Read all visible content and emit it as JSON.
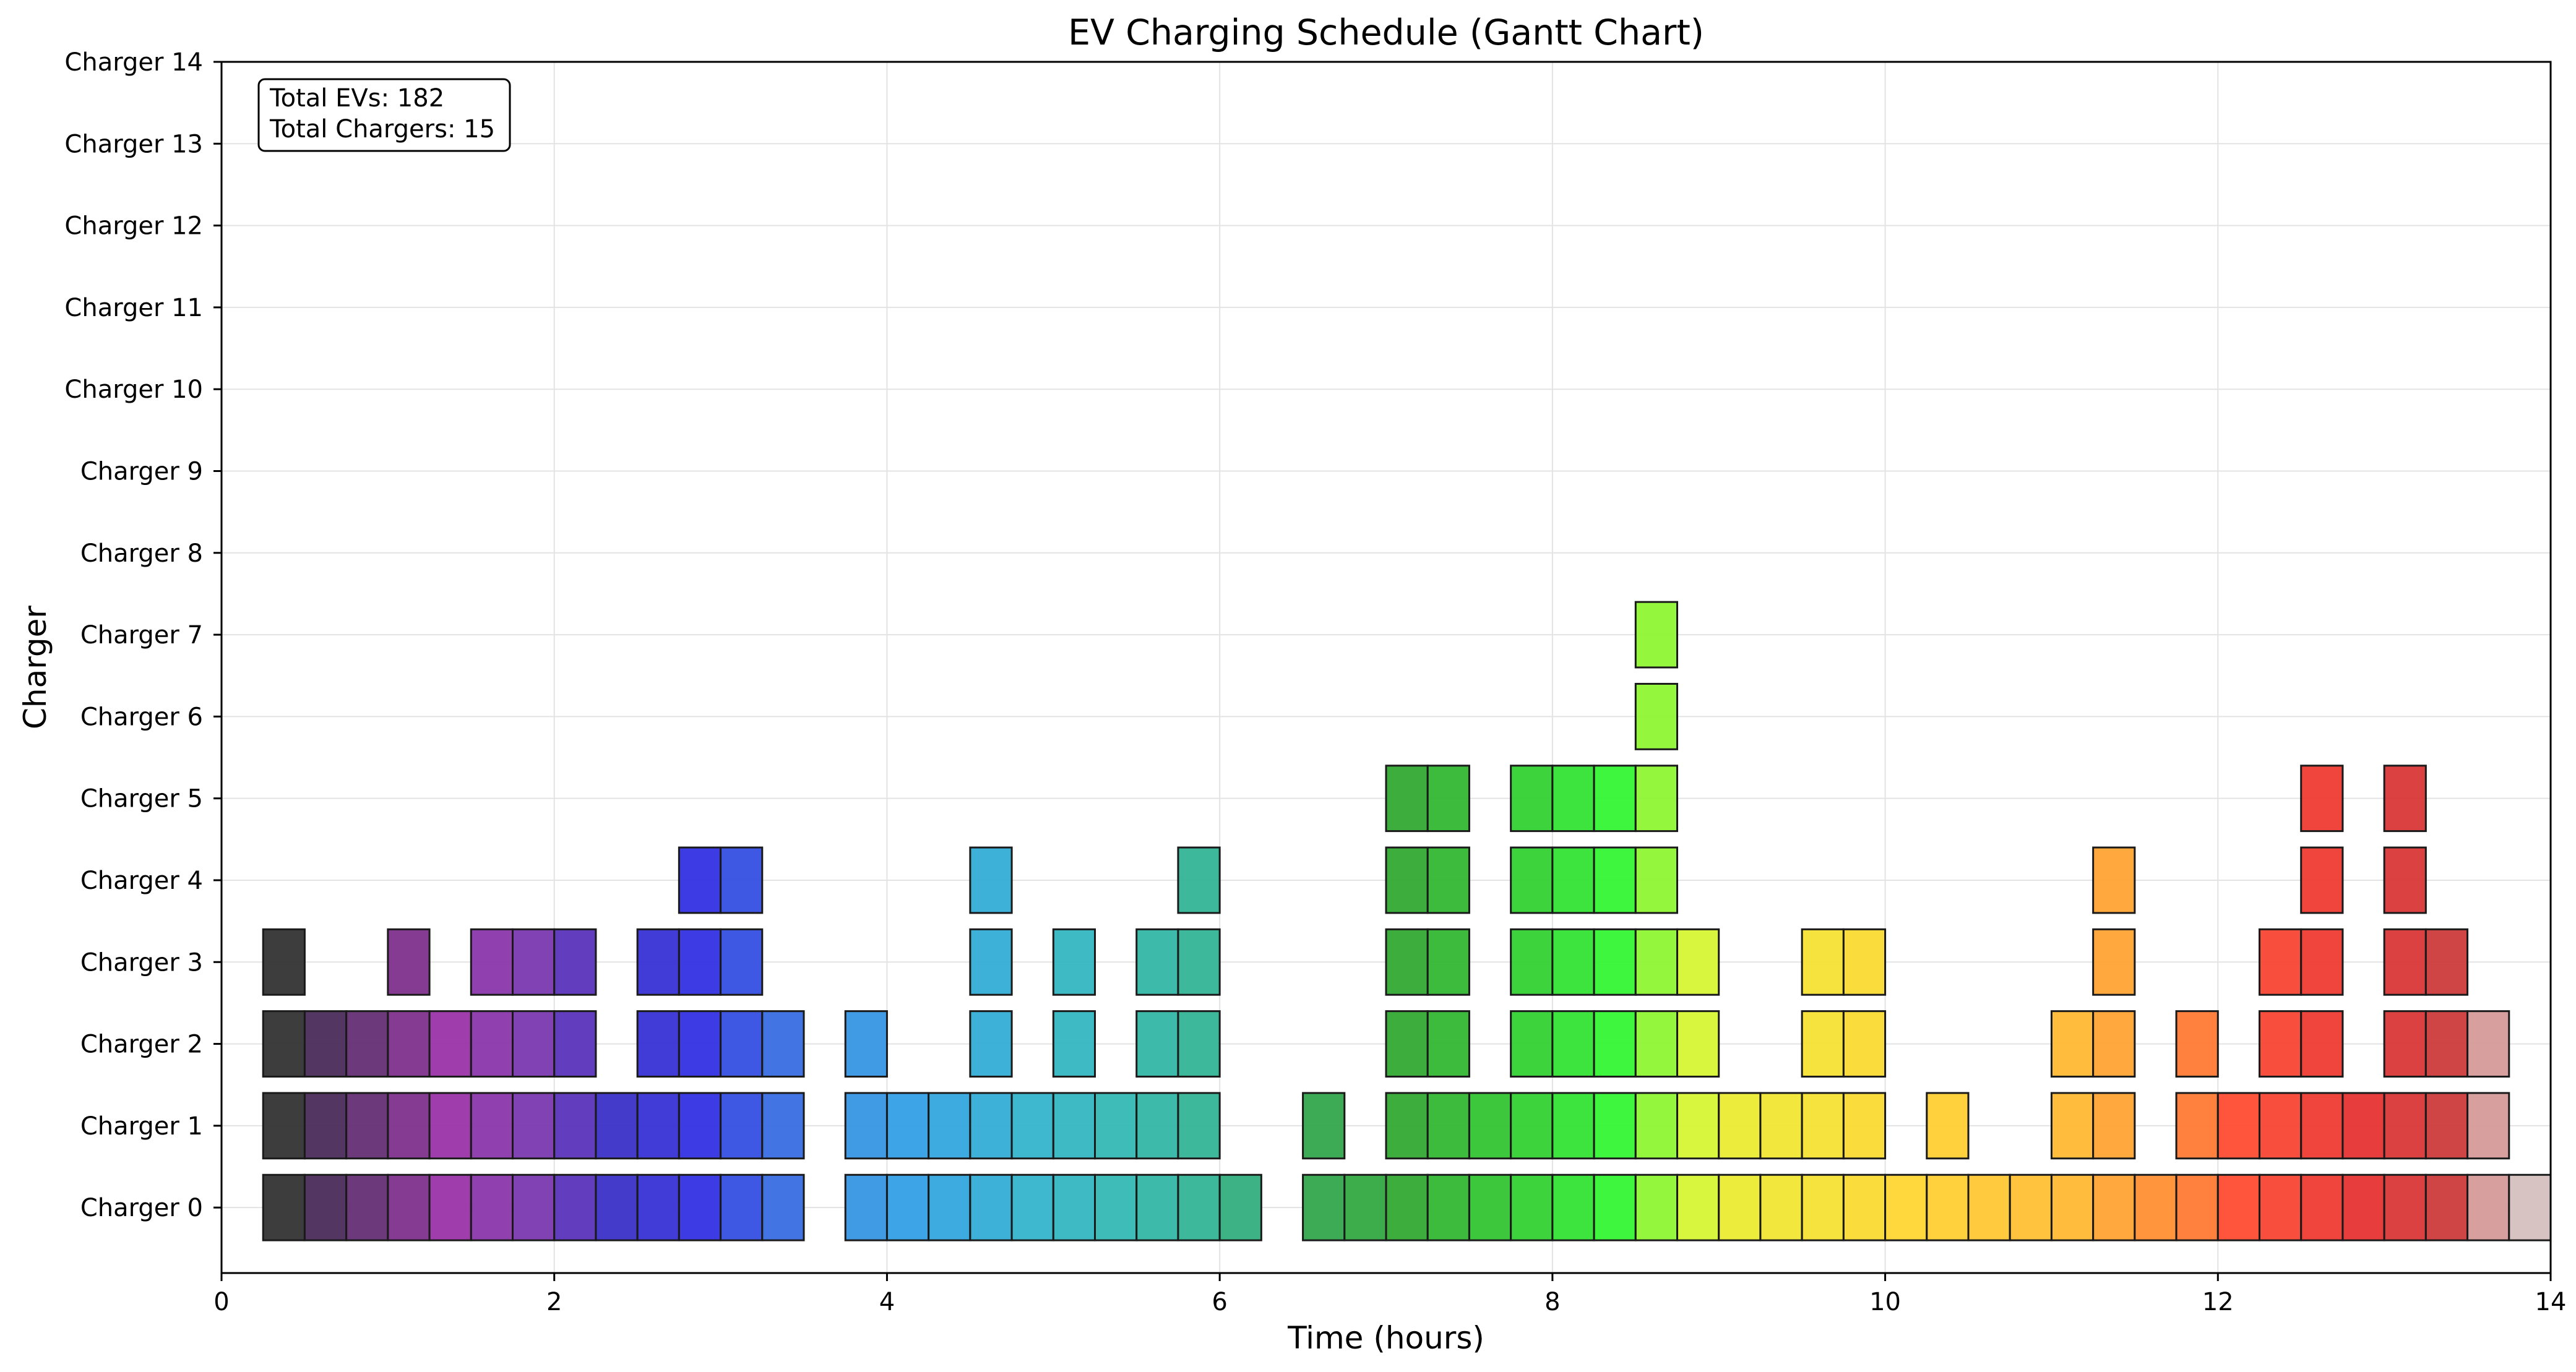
{
  "chart_data": {
    "type": "gantt",
    "title": "EV Charging Schedule (Gantt Chart)",
    "xlabel": "Time (hours)",
    "ylabel": "Charger",
    "xlim": [
      0,
      14
    ],
    "ylim": [
      -0.8,
      14
    ],
    "xticks": [
      0,
      2,
      4,
      6,
      8,
      10,
      12,
      14
    ],
    "yticks": [
      "Charger 0",
      "Charger 1",
      "Charger 2",
      "Charger 3",
      "Charger 4",
      "Charger 5",
      "Charger 6",
      "Charger 7",
      "Charger 8",
      "Charger 9",
      "Charger 10",
      "Charger 11",
      "Charger 12",
      "Charger 13",
      "Charger 14"
    ],
    "grid": true,
    "slot_hours": 0.25,
    "annotation": {
      "lines": [
        "Total EVs: 182",
        "Total Chargers: 15"
      ],
      "placement": "top-left"
    },
    "gradient_stops": [
      [
        0.25,
        "#333333"
      ],
      [
        0.5,
        "#4a2b5a"
      ],
      [
        1.25,
        "#9933a6"
      ],
      [
        1.75,
        "#7a38b0"
      ],
      [
        2.25,
        "#3a30c8"
      ],
      [
        2.75,
        "#3330e3"
      ],
      [
        3.5,
        "#3a8ce0"
      ],
      [
        4.0,
        "#33a0e6"
      ],
      [
        4.75,
        "#33b4cc"
      ],
      [
        5.25,
        "#33b8b4"
      ],
      [
        5.75,
        "#33b496"
      ],
      [
        6.25,
        "#33aa66"
      ],
      [
        6.5,
        "#33a64c"
      ],
      [
        7.0,
        "#33aa33"
      ],
      [
        7.75,
        "#33d133"
      ],
      [
        8.25,
        "#33f533"
      ],
      [
        8.5,
        "#8ef533"
      ],
      [
        8.75,
        "#d6f533"
      ],
      [
        9.0,
        "#ebeb33"
      ],
      [
        10.0,
        "#ffd633"
      ],
      [
        11.0,
        "#ffb833"
      ],
      [
        11.75,
        "#ff7a33"
      ],
      [
        12.0,
        "#ff4c33"
      ],
      [
        12.75,
        "#e63333"
      ],
      [
        13.25,
        "#cc3a3a"
      ],
      [
        13.5,
        "#d69a9a"
      ],
      [
        13.75,
        "#d6c0c0"
      ],
      [
        14.0,
        "#d6d6d6"
      ]
    ],
    "series": [
      {
        "charger": 0,
        "starts": [
          0.25,
          0.5,
          0.75,
          1.0,
          1.25,
          1.5,
          1.75,
          2.0,
          2.25,
          2.5,
          2.75,
          3.0,
          3.25,
          3.75,
          4.0,
          4.25,
          4.5,
          4.75,
          5.0,
          5.25,
          5.5,
          5.75,
          6.0,
          6.5,
          6.75,
          7.0,
          7.25,
          7.5,
          7.75,
          8.0,
          8.25,
          8.5,
          8.75,
          9.0,
          9.25,
          9.5,
          9.75,
          10.0,
          10.25,
          10.5,
          10.75,
          11.0,
          11.25,
          11.5,
          11.75,
          12.0,
          12.25,
          12.5,
          12.75,
          13.0,
          13.25,
          13.5,
          13.75
        ]
      },
      {
        "charger": 1,
        "starts": [
          0.25,
          0.5,
          0.75,
          1.0,
          1.25,
          1.5,
          1.75,
          2.0,
          2.25,
          2.5,
          2.75,
          3.0,
          3.25,
          3.75,
          4.0,
          4.25,
          4.5,
          4.75,
          5.0,
          5.25,
          5.5,
          5.75,
          6.5,
          7.0,
          7.25,
          7.5,
          7.75,
          8.0,
          8.25,
          8.5,
          8.75,
          9.0,
          9.25,
          9.5,
          9.75,
          10.25,
          11.0,
          11.25,
          11.75,
          12.0,
          12.25,
          12.5,
          12.75,
          13.0,
          13.25,
          13.5
        ]
      },
      {
        "charger": 2,
        "starts": [
          0.25,
          0.5,
          0.75,
          1.0,
          1.25,
          1.5,
          1.75,
          2.0,
          2.5,
          2.75,
          3.0,
          3.25,
          3.75,
          4.5,
          5.0,
          5.5,
          5.75,
          7.0,
          7.25,
          7.75,
          8.0,
          8.25,
          8.5,
          8.75,
          9.5,
          9.75,
          11.0,
          11.25,
          11.75,
          12.25,
          12.5,
          13.0,
          13.25,
          13.5
        ]
      },
      {
        "charger": 3,
        "starts": [
          0.25,
          1.0,
          1.5,
          1.75,
          2.0,
          2.5,
          2.75,
          3.0,
          4.5,
          5.0,
          5.5,
          5.75,
          7.0,
          7.25,
          7.75,
          8.0,
          8.25,
          8.5,
          8.75,
          9.5,
          9.75,
          11.25,
          12.25,
          12.5,
          13.0,
          13.25
        ]
      },
      {
        "charger": 4,
        "starts": [
          2.75,
          3.0,
          4.5,
          5.75,
          7.0,
          7.25,
          7.75,
          8.0,
          8.25,
          8.5,
          11.25,
          12.5,
          13.0
        ]
      },
      {
        "charger": 5,
        "starts": [
          7.0,
          7.25,
          7.75,
          8.0,
          8.25,
          8.5,
          12.5,
          13.0
        ]
      },
      {
        "charger": 6,
        "starts": [
          8.5
        ]
      },
      {
        "charger": 7,
        "starts": [
          8.5
        ]
      }
    ]
  }
}
